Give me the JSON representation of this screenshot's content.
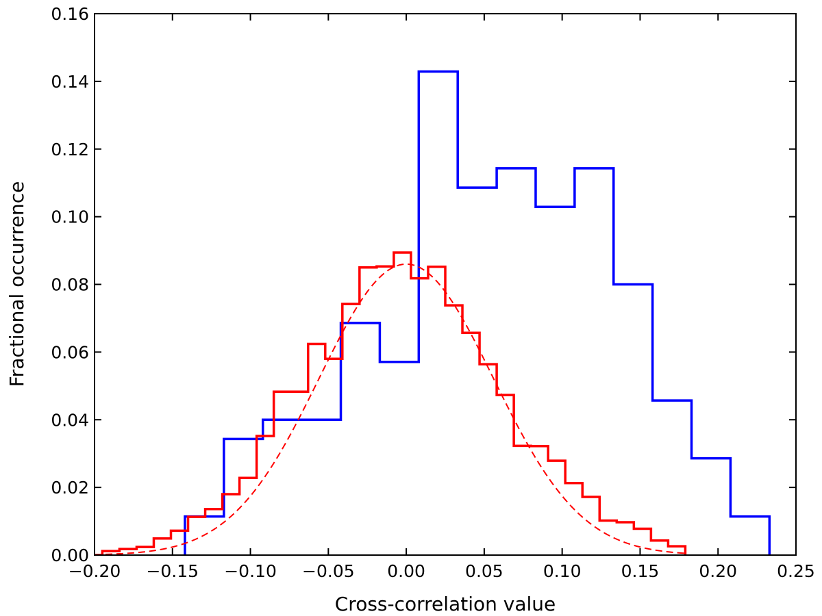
{
  "chart_data": {
    "type": "histogram",
    "title": "",
    "xlabel": "Cross-correlation value",
    "ylabel": "Fractional occurrence",
    "xlim": [
      -0.2,
      0.25
    ],
    "ylim": [
      0.0,
      0.16
    ],
    "xticks": [
      -0.2,
      -0.15,
      -0.1,
      -0.05,
      0.0,
      0.05,
      0.1,
      0.15,
      0.2,
      0.25
    ],
    "xtick_labels": [
      "−0.20",
      "−0.15",
      "−0.10",
      "−0.05",
      "0.00",
      "0.05",
      "0.10",
      "0.15",
      "0.20",
      "0.25"
    ],
    "yticks": [
      0.0,
      0.02,
      0.04,
      0.06,
      0.08,
      0.1,
      0.12,
      0.14,
      0.16
    ],
    "ytick_labels": [
      "0.00",
      "0.02",
      "0.04",
      "0.06",
      "0.08",
      "0.10",
      "0.12",
      "0.14",
      "0.16"
    ],
    "grid": false,
    "legend": "none",
    "series": [
      {
        "style": "step",
        "color": "#0000ff",
        "bin_edges": [
          -0.142,
          -0.117,
          -0.092,
          -0.067,
          -0.042,
          -0.017,
          0.008,
          0.033,
          0.058,
          0.083,
          0.108,
          0.133,
          0.158,
          0.183,
          0.208,
          0.233
        ],
        "values": [
          0.0114,
          0.0343,
          0.04,
          0.04,
          0.0686,
          0.0571,
          0.1429,
          0.1086,
          0.1143,
          0.1029,
          0.1143,
          0.08,
          0.0457,
          0.0286,
          0.0114
        ]
      },
      {
        "style": "step",
        "color": "#ff0000",
        "bin_edges": [
          -0.195,
          -0.184,
          -0.173,
          -0.162,
          -0.151,
          -0.14,
          -0.129,
          -0.118,
          -0.107,
          -0.096,
          -0.085,
          -0.074,
          -0.063,
          -0.052,
          -0.041,
          -0.03,
          -0.019,
          -0.008,
          0.003,
          0.014,
          0.025,
          0.036,
          0.047,
          0.058,
          0.069,
          0.08,
          0.091,
          0.102,
          0.113,
          0.124,
          0.135,
          0.146,
          0.157,
          0.168,
          0.179
        ],
        "values": [
          0.0012,
          0.0018,
          0.0024,
          0.0049,
          0.0072,
          0.0113,
          0.0136,
          0.018,
          0.0228,
          0.0352,
          0.0483,
          0.0483,
          0.0624,
          0.058,
          0.0742,
          0.085,
          0.0853,
          0.0894,
          0.0818,
          0.0852,
          0.0738,
          0.0657,
          0.0564,
          0.0473,
          0.0323,
          0.0322,
          0.0279,
          0.0213,
          0.0172,
          0.0102,
          0.0097,
          0.0078,
          0.0043,
          0.0026
        ]
      },
      {
        "style": "dashed-curve",
        "color": "#ff0000",
        "fit": "gaussian",
        "amplitude": 0.086,
        "mean": 0.0,
        "sigma": 0.056,
        "x_range": [
          -0.2,
          0.18
        ]
      }
    ]
  }
}
